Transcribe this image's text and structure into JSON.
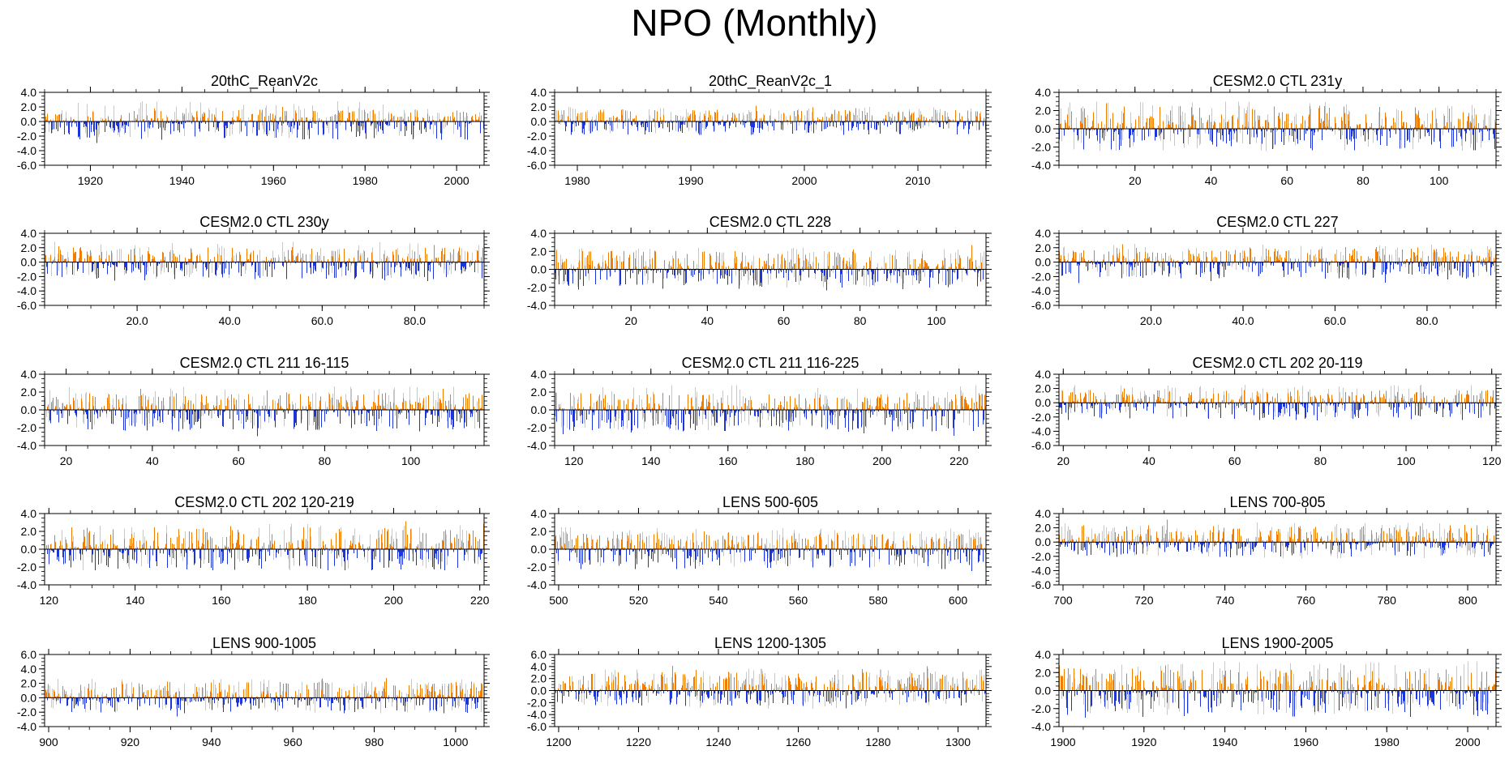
{
  "title": "NPO (Monthly)",
  "colors": {
    "positive": "#f07d00",
    "negative": "#1d35d8",
    "background_trace": "#c8c8c8"
  },
  "chart_data": [
    {
      "type": "bar",
      "title": "20thC_ReanV2c",
      "xlim": [
        1910,
        2006
      ],
      "xticks": [
        1920,
        1940,
        1960,
        1980,
        2000
      ],
      "ylim": [
        -6,
        4
      ],
      "yticks": [
        "4.0",
        "2.0",
        "0.0",
        "-2.0",
        "-4.0",
        "-6.0"
      ],
      "pos_amp": 2.2,
      "neg_amp": 3.2
    },
    {
      "type": "bar",
      "title": "20thC_ReanV2c_1",
      "xlim": [
        1978,
        2016
      ],
      "xticks": [
        1980,
        1990,
        2000,
        2010
      ],
      "ylim": [
        -6,
        4
      ],
      "yticks": [
        "4.0",
        "2.0",
        "0.0",
        "-2.0",
        "-4.0",
        "-6.0"
      ],
      "pos_amp": 2.2,
      "neg_amp": 2.3
    },
    {
      "type": "bar",
      "title": "CESM2.0 CTL 231y",
      "xlim": [
        0,
        115
      ],
      "xticks": [
        20,
        40,
        60,
        80,
        100
      ],
      "ylim": [
        -4,
        4
      ],
      "yticks": [
        "4.0",
        "2.0",
        "0.0",
        "-2.0",
        "-4.0"
      ],
      "pos_amp": 3.4,
      "neg_amp": 3.0
    },
    {
      "type": "bar",
      "title": "CESM2.0 CTL 230y",
      "xlim": [
        0,
        95
      ],
      "xticks": [
        "20.0",
        "40.0",
        "60.0",
        "80.0"
      ],
      "ylim": [
        -6,
        4
      ],
      "yticks": [
        "4.0",
        "2.0",
        "0.0",
        "-2.0",
        "-4.0",
        "-6.0"
      ],
      "pos_amp": 2.8,
      "neg_amp": 3.2
    },
    {
      "type": "bar",
      "title": "CESM2.0 CTL 228",
      "xlim": [
        0,
        113
      ],
      "xticks": [
        20,
        40,
        60,
        80,
        100
      ],
      "ylim": [
        -4,
        4
      ],
      "yticks": [
        "4.0",
        "2.0",
        "0.0",
        "-2.0",
        "-4.0"
      ],
      "pos_amp": 2.8,
      "neg_amp": 2.8
    },
    {
      "type": "bar",
      "title": "CESM2.0 CTL 227",
      "xlim": [
        0,
        95
      ],
      "xticks": [
        "20.0",
        "40.0",
        "60.0",
        "80.0"
      ],
      "ylim": [
        -6,
        4
      ],
      "yticks": [
        "4.0",
        "2.0",
        "0.0",
        "-2.0",
        "-4.0",
        "-6.0"
      ],
      "pos_amp": 2.8,
      "neg_amp": 3.0
    },
    {
      "type": "bar",
      "title": "CESM2.0 CTL 211 16-115",
      "xlim": [
        15,
        117
      ],
      "xticks": [
        20,
        40,
        60,
        80,
        100
      ],
      "ylim": [
        -4,
        4
      ],
      "yticks": [
        "4.0",
        "2.0",
        "0.0",
        "-2.0",
        "-4.0"
      ],
      "pos_amp": 2.6,
      "neg_amp": 3.0
    },
    {
      "type": "bar",
      "title": "CESM2.0 CTL 211 116-225",
      "xlim": [
        115,
        227
      ],
      "xticks": [
        120,
        140,
        160,
        180,
        200,
        220
      ],
      "ylim": [
        -4,
        4
      ],
      "yticks": [
        "4.0",
        "2.0",
        "0.0",
        "-2.0",
        "-4.0"
      ],
      "pos_amp": 2.7,
      "neg_amp": 3.2
    },
    {
      "type": "bar",
      "title": "CESM2.0 CTL 202 20-119",
      "xlim": [
        19,
        121
      ],
      "xticks": [
        20,
        40,
        60,
        80,
        100,
        120
      ],
      "ylim": [
        -6,
        4
      ],
      "yticks": [
        "4.0",
        "2.0",
        "0.0",
        "-2.0",
        "-4.0",
        "-6.0"
      ],
      "pos_amp": 2.4,
      "neg_amp": 3.0
    },
    {
      "type": "bar",
      "title": "CESM2.0 CTL 202 120-219",
      "xlim": [
        119,
        221
      ],
      "xticks": [
        120,
        140,
        160,
        180,
        200,
        220
      ],
      "ylim": [
        -4,
        4
      ],
      "yticks": [
        "4.0",
        "2.0",
        "0.0",
        "-2.0",
        "-4.0"
      ],
      "pos_amp": 3.3,
      "neg_amp": 3.0
    },
    {
      "type": "bar",
      "title": "LENS 500-605",
      "xlim": [
        499,
        607
      ],
      "xticks": [
        500,
        520,
        540,
        560,
        580,
        600
      ],
      "ylim": [
        -4,
        4
      ],
      "yticks": [
        "4.0",
        "2.0",
        "0.0",
        "-2.0",
        "-4.0"
      ],
      "pos_amp": 2.6,
      "neg_amp": 2.8
    },
    {
      "type": "bar",
      "title": "LENS 700-805",
      "xlim": [
        699,
        807
      ],
      "xticks": [
        700,
        720,
        740,
        760,
        780,
        800
      ],
      "ylim": [
        -6,
        4
      ],
      "yticks": [
        "4.0",
        "2.0",
        "0.0",
        "-2.0",
        "-4.0",
        "-6.0"
      ],
      "pos_amp": 3.2,
      "neg_amp": 2.6
    },
    {
      "type": "bar",
      "title": "LENS 900-1005",
      "xlim": [
        899,
        1007
      ],
      "xticks": [
        900,
        920,
        940,
        960,
        980,
        1000
      ],
      "ylim": [
        -4,
        6
      ],
      "yticks": [
        "6.0",
        "4.0",
        "2.0",
        "0.0",
        "-2.0",
        "-4.0"
      ],
      "pos_amp": 3.0,
      "neg_amp": 2.7
    },
    {
      "type": "bar",
      "title": "LENS 1200-1305",
      "xlim": [
        1199,
        1307
      ],
      "xticks": [
        1200,
        1220,
        1240,
        1260,
        1280,
        1300
      ],
      "ylim": [
        -6,
        6
      ],
      "yticks": [
        "6.0",
        "4.0",
        "2.0",
        "0.0",
        "-2.0",
        "-4.0",
        "-6.0"
      ],
      "pos_amp": 4.2,
      "neg_amp": 3.2
    },
    {
      "type": "bar",
      "title": "LENS 1900-2005",
      "xlim": [
        1899,
        2007
      ],
      "xticks": [
        1900,
        1920,
        1940,
        1960,
        1980,
        2000
      ],
      "ylim": [
        -4,
        4
      ],
      "yticks": [
        "4.0",
        "2.0",
        "0.0",
        "-2.0",
        "-4.0"
      ],
      "pos_amp": 3.3,
      "neg_amp": 3.8
    }
  ]
}
